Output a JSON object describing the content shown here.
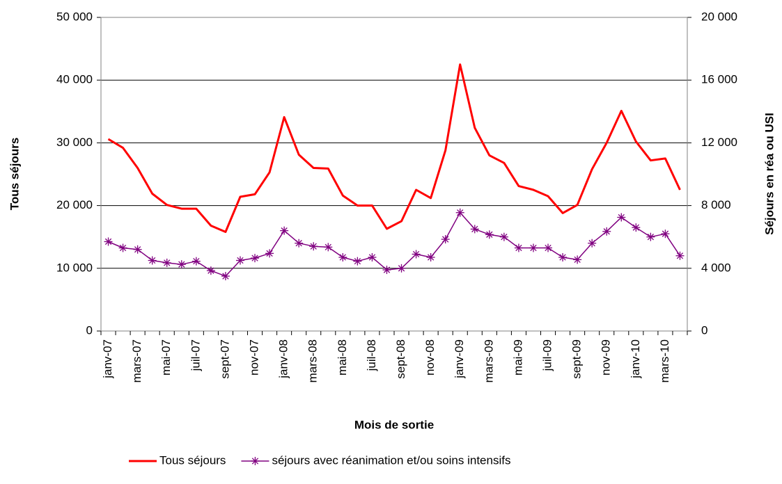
{
  "chart_data": {
    "type": "line",
    "xlabel": "Mois de sortie",
    "ylabel": "Tous séjours",
    "y2label": "Séjours en réa ou USI",
    "categories": [
      "janv-07",
      null,
      "mars-07",
      null,
      "mai-07",
      null,
      "juil-07",
      null,
      "sept-07",
      null,
      "nov-07",
      null,
      "janv-08",
      null,
      "mars-08",
      null,
      "mai-08",
      null,
      "juil-08",
      null,
      "sept-08",
      null,
      "nov-08",
      null,
      "janv-09",
      null,
      "mars-09",
      null,
      "mai-09",
      null,
      "juil-09",
      null,
      "sept-09",
      null,
      "nov-09",
      null,
      "janv-10",
      null,
      "mars-10",
      null
    ],
    "series": [
      {
        "name": "Tous séjours",
        "color": "#ff0000",
        "marker": "none",
        "values": [
          30600,
          29200,
          26000,
          21900,
          20100,
          19500,
          19500,
          16800,
          15800,
          21400,
          21800,
          25300,
          34100,
          28100,
          26000,
          25900,
          21600,
          20000,
          20000,
          16300,
          17500,
          22500,
          21200,
          28800,
          42500,
          32400,
          28000,
          26800,
          23100,
          22500,
          21500,
          18800,
          20100,
          25800,
          30000,
          35100,
          30200,
          27200,
          27500,
          22500
        ]
      },
      {
        "name": "séjours avec réanimation et/ou soins intensifs",
        "color": "#800080",
        "marker": "asterisk",
        "axis": "y2",
        "values": [
          5700,
          5300,
          5200,
          4500,
          4350,
          4250,
          4450,
          3850,
          3500,
          4500,
          4650,
          4950,
          6400,
          5600,
          5400,
          5350,
          4700,
          4450,
          4700,
          3900,
          4000,
          4900,
          4700,
          5850,
          7550,
          6500,
          6150,
          6000,
          5300,
          5300,
          5300,
          4700,
          4550,
          5600,
          6350,
          7250,
          6600,
          6000,
          6200,
          4800
        ]
      }
    ],
    "ylim": [
      0,
      50000
    ],
    "yticks": [
      0,
      {
        "value": 10000,
        "label": "10 000"
      },
      {
        "value": 20000,
        "label": "20 000"
      },
      {
        "value": 30000,
        "label": "30 000"
      },
      {
        "value": 40000,
        "label": "40 000"
      },
      {
        "value": 50000,
        "label": "50 000"
      }
    ],
    "y2lim": [
      0,
      20000
    ],
    "y2ticks": [
      0,
      {
        "value": 4000,
        "label": "4 000"
      },
      {
        "value": 8000,
        "label": "8 000"
      },
      {
        "value": 12000,
        "label": "12 000"
      },
      {
        "value": 16000,
        "label": "16 000"
      },
      {
        "value": 20000,
        "label": "20 000"
      }
    ],
    "grid": true,
    "legend": "bottom"
  }
}
